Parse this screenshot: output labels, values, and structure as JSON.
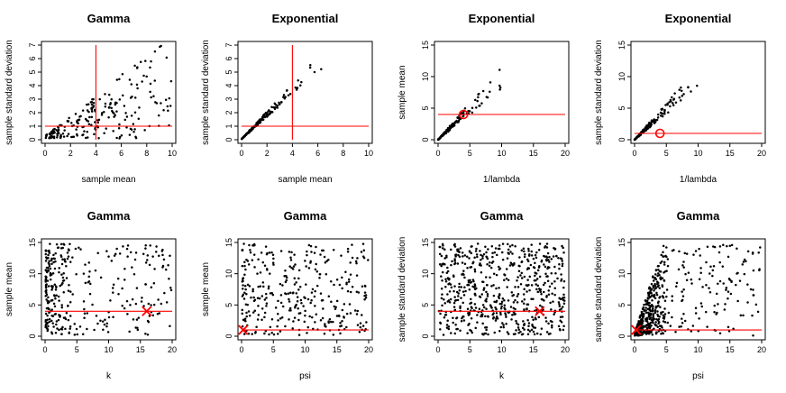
{
  "colors": {
    "points": "#000000",
    "reference": "#ff0000",
    "background": "#ffffff"
  },
  "chart_data": [
    {
      "id": "p1",
      "type": "scatter",
      "title": "Gamma",
      "xlabel": "sample mean",
      "ylabel": "sample standard deviation",
      "xlim": [
        0,
        10
      ],
      "ylim": [
        0,
        7
      ],
      "xticks": [
        "0",
        "2",
        "4",
        "6",
        "8",
        "10"
      ],
      "xtick_values": [
        0,
        2,
        4,
        6,
        8,
        10
      ],
      "yticks": [
        "0",
        "1",
        "2",
        "3",
        "4",
        "5",
        "6",
        "7"
      ],
      "ytick_values": [
        0,
        1,
        2,
        3,
        4,
        5,
        6,
        7
      ],
      "hline": 1,
      "hline_from": 0,
      "hline_to": 10,
      "vline": 4,
      "vline_from": 0,
      "vline_to": 7,
      "marker": null,
      "points": {
        "count": 220,
        "seed": 11,
        "model": "gamma_sd"
      }
    },
    {
      "id": "p2",
      "type": "scatter",
      "title": "Exponential",
      "xlabel": "sample mean",
      "ylabel": "sample standard deviation",
      "xlim": [
        0,
        10
      ],
      "ylim": [
        0,
        7
      ],
      "xticks": [
        "0",
        "2",
        "4",
        "6",
        "8",
        "10"
      ],
      "xtick_values": [
        0,
        2,
        4,
        6,
        8,
        10
      ],
      "yticks": [
        "0",
        "1",
        "2",
        "3",
        "4",
        "5",
        "6",
        "7"
      ],
      "ytick_values": [
        0,
        1,
        2,
        3,
        4,
        5,
        6,
        7
      ],
      "hline": 1,
      "hline_from": 0,
      "hline_to": 10,
      "vline": 4,
      "vline_from": 0,
      "vline_to": 7,
      "marker": null,
      "points": {
        "count": 170,
        "seed": 23,
        "model": "exp_sd"
      }
    },
    {
      "id": "p3",
      "type": "scatter",
      "title": "Exponential",
      "xlabel": "1/lambda",
      "ylabel": "sample mean",
      "xlim": [
        0,
        20
      ],
      "ylim": [
        0,
        15
      ],
      "xticks": [
        "0",
        "5",
        "10",
        "15",
        "20"
      ],
      "xtick_values": [
        0,
        5,
        10,
        15,
        20
      ],
      "yticks": [
        "0",
        "5",
        "10",
        "15"
      ],
      "ytick_values": [
        0,
        5,
        10,
        15
      ],
      "hline": 4,
      "hline_from": 0,
      "hline_to": 20,
      "vline": null,
      "marker": {
        "shape": "circle",
        "x": 4,
        "y": 4
      },
      "points": {
        "count": 160,
        "seed": 37,
        "model": "exp_mean"
      }
    },
    {
      "id": "p4",
      "type": "scatter",
      "title": "Exponential",
      "xlabel": "1/lambda",
      "ylabel": "sample standard deviation",
      "xlim": [
        0,
        20
      ],
      "ylim": [
        0,
        15
      ],
      "xticks": [
        "0",
        "5",
        "10",
        "15",
        "20"
      ],
      "xtick_values": [
        0,
        5,
        10,
        15,
        20
      ],
      "yticks": [
        "0",
        "5",
        "10",
        "15"
      ],
      "ytick_values": [
        0,
        5,
        10,
        15
      ],
      "hline": 1,
      "hline_from": 0,
      "hline_to": 20,
      "vline": null,
      "marker": {
        "shape": "circle",
        "x": 4,
        "y": 1
      },
      "points": {
        "count": 160,
        "seed": 41,
        "model": "exp_mean"
      }
    },
    {
      "id": "p5",
      "type": "scatter",
      "title": "Gamma",
      "xlabel": "k",
      "ylabel": "sample mean",
      "xlim": [
        0,
        20
      ],
      "ylim": [
        0,
        15
      ],
      "xticks": [
        "0",
        "5",
        "10",
        "15",
        "20"
      ],
      "xtick_values": [
        0,
        5,
        10,
        15,
        20
      ],
      "yticks": [
        "0",
        "5",
        "10",
        "15"
      ],
      "ytick_values": [
        0,
        5,
        10,
        15
      ],
      "hline": 4,
      "hline_from": 0,
      "hline_to": 20,
      "vline": null,
      "marker": {
        "shape": "cross",
        "x": 16,
        "y": 4
      },
      "points": {
        "count": 330,
        "seed": 53,
        "model": "k_clustered"
      }
    },
    {
      "id": "p6",
      "type": "scatter",
      "title": "Gamma",
      "xlabel": "psi",
      "ylabel": "sample mean",
      "xlim": [
        0,
        20
      ],
      "ylim": [
        0,
        15
      ],
      "xticks": [
        "0",
        "5",
        "10",
        "15",
        "20"
      ],
      "xtick_values": [
        0,
        5,
        10,
        15,
        20
      ],
      "yticks": [
        "0",
        "5",
        "10",
        "15"
      ],
      "ytick_values": [
        0,
        5,
        10,
        15
      ],
      "hline": 1,
      "hline_from": 0,
      "hline_to": 20,
      "vline": null,
      "marker": {
        "shape": "cross",
        "x": 0.25,
        "y": 1
      },
      "points": {
        "count": 330,
        "seed": 67,
        "model": "psi_spread"
      }
    },
    {
      "id": "p7",
      "type": "scatter",
      "title": "Gamma",
      "xlabel": "k",
      "ylabel": "sample standard deviation",
      "xlim": [
        0,
        20
      ],
      "ylim": [
        0,
        15
      ],
      "xticks": [
        "0",
        "5",
        "10",
        "15",
        "20"
      ],
      "xtick_values": [
        0,
        5,
        10,
        15,
        20
      ],
      "yticks": [
        "0",
        "5",
        "10",
        "15"
      ],
      "ytick_values": [
        0,
        5,
        10,
        15
      ],
      "hline": 4,
      "hline_from": 0,
      "hline_to": 20,
      "vline": null,
      "marker": {
        "shape": "cross",
        "x": 16,
        "y": 4
      },
      "points": {
        "count": 620,
        "seed": 79,
        "model": "uniform_k"
      }
    },
    {
      "id": "p8",
      "type": "scatter",
      "title": "Gamma",
      "xlabel": "psi",
      "ylabel": "sample standard deviation",
      "xlim": [
        0,
        20
      ],
      "ylim": [
        0,
        15
      ],
      "xticks": [
        "0",
        "5",
        "10",
        "15",
        "20"
      ],
      "xtick_values": [
        0,
        5,
        10,
        15,
        20
      ],
      "yticks": [
        "0",
        "5",
        "10",
        "15"
      ],
      "ytick_values": [
        0,
        5,
        10,
        15
      ],
      "hline": 1,
      "hline_from": 0,
      "hline_to": 20,
      "vline": null,
      "marker": {
        "shape": "cross",
        "x": 0.25,
        "y": 1
      },
      "points": {
        "count": 560,
        "seed": 97,
        "model": "psi_fan"
      }
    }
  ]
}
